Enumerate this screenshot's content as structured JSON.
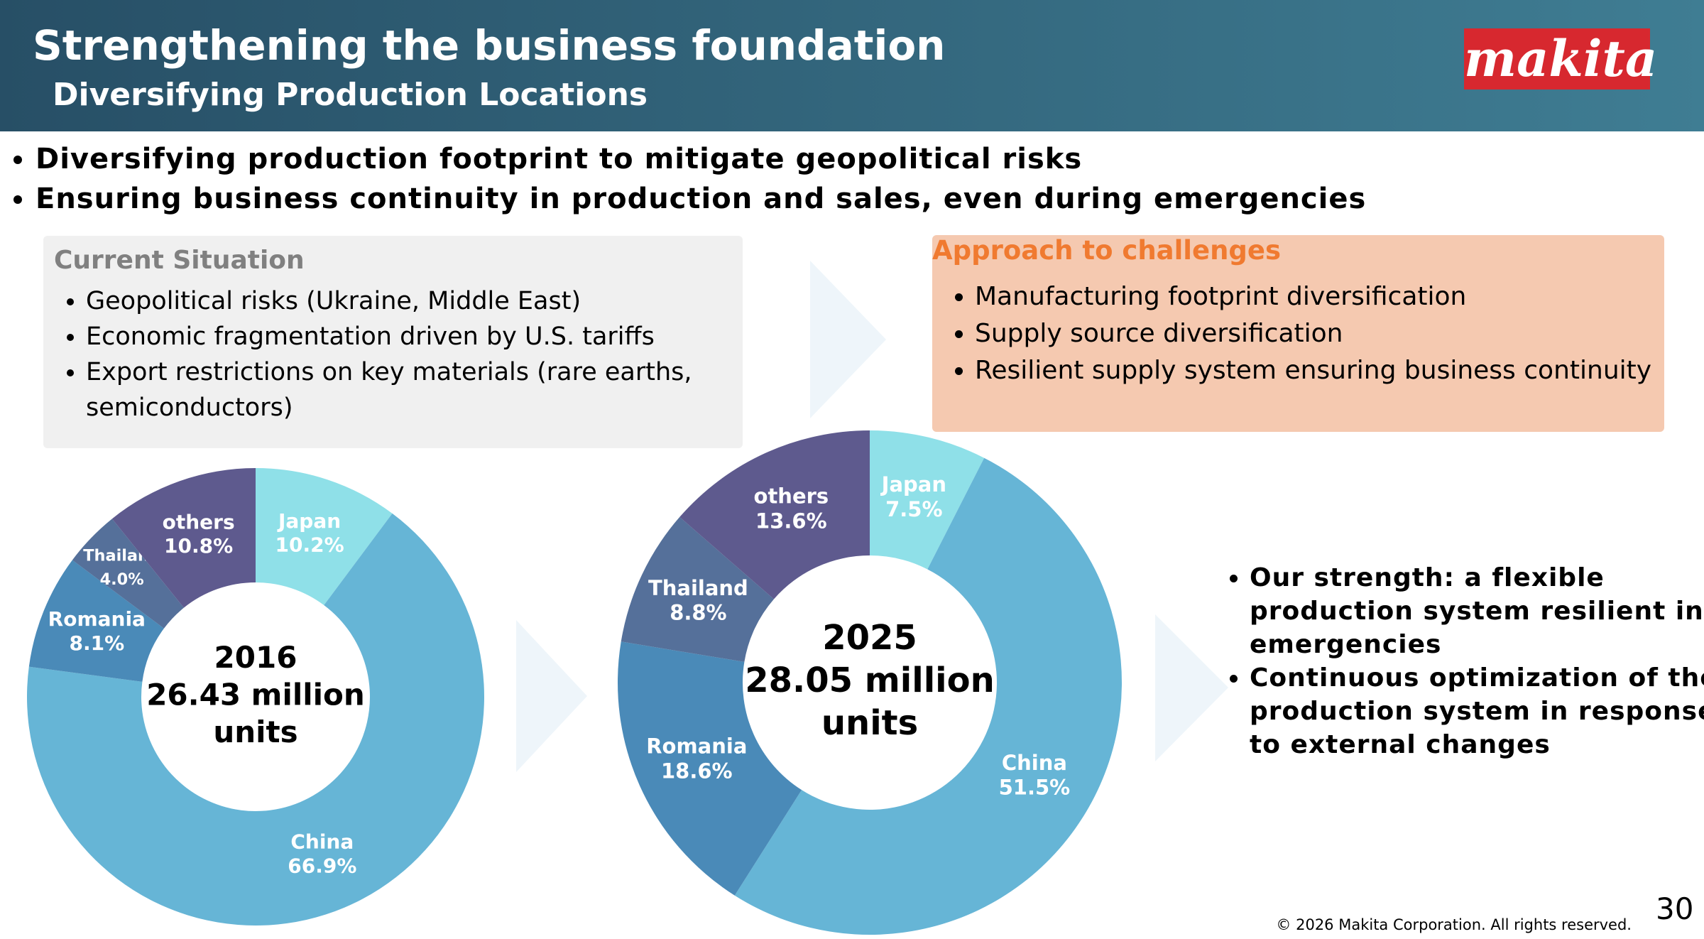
{
  "header": {
    "title": "Strengthening the business foundation",
    "subtitle": "Diversifying Production Locations"
  },
  "logo": "makita",
  "key_points": [
    "Diversifying production footprint to mitigate geopolitical risks",
    "Ensuring business continuity in production and sales, even during emergencies"
  ],
  "current_situation": {
    "heading": "Current Situation",
    "items": [
      "Geopolitical risks (Ukraine, Middle East)",
      "Economic fragmentation driven by U.S. tariffs",
      "Export restrictions on key materials (rare earths, semiconductors)"
    ]
  },
  "approach": {
    "heading": "Approach to challenges",
    "items": [
      "Manufacturing footprint diversification",
      "Supply source diversification",
      "Resilient supply system ensuring business continuity"
    ]
  },
  "strengths": [
    "Our strength: a flexible production system resilient in emergencies",
    "Continuous optimization of the production system in response to external changes"
  ],
  "footer": {
    "copyright": "© 2026 Makita Corporation. All rights reserved.",
    "page_number": "30"
  },
  "chart_data": [
    {
      "type": "pie",
      "donut": true,
      "center_label": [
        "2016",
        "26.43 million",
        "units"
      ],
      "categories": [
        "Japan",
        "China",
        "Romania",
        "Thailand",
        "others"
      ],
      "values": [
        10.2,
        66.9,
        8.1,
        4.0,
        10.8
      ],
      "value_labels": [
        "10.2%",
        "66.9%",
        "8.1%",
        "4.0%",
        "10.8%"
      ],
      "colors": [
        "#8fe0e8",
        "#66b5d6",
        "#4a8ab8",
        "#55709a",
        "#5e5a8e"
      ]
    },
    {
      "type": "pie",
      "donut": true,
      "center_label": [
        "2025",
        "28.05 million",
        "units"
      ],
      "categories": [
        "Japan",
        "China",
        "Romania",
        "Thailand",
        "others"
      ],
      "values": [
        7.5,
        51.5,
        18.6,
        8.8,
        13.6
      ],
      "value_labels": [
        "7.5%",
        "51.5%",
        "18.6%",
        "8.8%",
        "13.6%"
      ],
      "colors": [
        "#8fe0e8",
        "#66b5d6",
        "#4a8ab8",
        "#55709a",
        "#5e5a8e"
      ]
    }
  ]
}
